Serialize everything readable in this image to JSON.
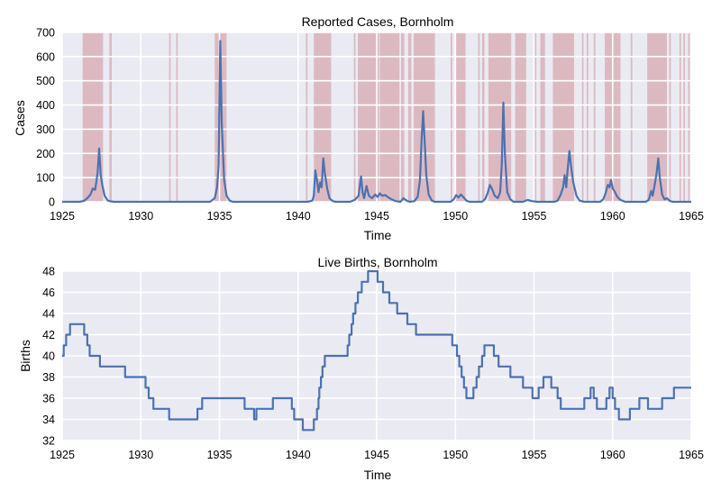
{
  "chart_data": [
    {
      "type": "line",
      "title": "Reported Cases, Bornholm",
      "xlabel": "Time",
      "ylabel": "Cases",
      "xlim": [
        1925,
        1965
      ],
      "ylim": [
        0,
        700
      ],
      "xticks": [
        1925,
        1930,
        1935,
        1940,
        1945,
        1950,
        1955,
        1960,
        1965
      ],
      "yticks": [
        0,
        100,
        200,
        300,
        400,
        500,
        600,
        700
      ],
      "grid": true,
      "series": [
        {
          "color": "#4c72b0",
          "points": [
            [
              1925,
              0
            ],
            [
              1926.1,
              0
            ],
            [
              1926.4,
              4
            ],
            [
              1926.6,
              15
            ],
            [
              1926.8,
              30
            ],
            [
              1926.95,
              55
            ],
            [
              1927.1,
              50
            ],
            [
              1927.25,
              120
            ],
            [
              1927.35,
              220
            ],
            [
              1927.45,
              110
            ],
            [
              1927.55,
              70
            ],
            [
              1927.7,
              25
            ],
            [
              1927.9,
              5
            ],
            [
              1928.1,
              2
            ],
            [
              1928.3,
              0
            ],
            [
              1934.4,
              0
            ],
            [
              1934.7,
              15
            ],
            [
              1934.85,
              60
            ],
            [
              1934.95,
              150
            ],
            [
              1935.05,
              665
            ],
            [
              1935.15,
              320
            ],
            [
              1935.3,
              90
            ],
            [
              1935.45,
              25
            ],
            [
              1935.65,
              5
            ],
            [
              1935.85,
              0
            ],
            [
              1940.6,
              0
            ],
            [
              1940.9,
              5
            ],
            [
              1941.0,
              25
            ],
            [
              1941.1,
              130
            ],
            [
              1941.2,
              90
            ],
            [
              1941.3,
              40
            ],
            [
              1941.4,
              80
            ],
            [
              1941.5,
              60
            ],
            [
              1941.6,
              180
            ],
            [
              1941.7,
              120
            ],
            [
              1941.85,
              55
            ],
            [
              1942.0,
              15
            ],
            [
              1942.2,
              3
            ],
            [
              1942.4,
              0
            ],
            [
              1943.3,
              0
            ],
            [
              1943.6,
              8
            ],
            [
              1943.85,
              25
            ],
            [
              1944.0,
              105
            ],
            [
              1944.1,
              40
            ],
            [
              1944.2,
              15
            ],
            [
              1944.35,
              65
            ],
            [
              1944.5,
              25
            ],
            [
              1944.7,
              15
            ],
            [
              1944.9,
              30
            ],
            [
              1945.05,
              20
            ],
            [
              1945.2,
              35
            ],
            [
              1945.35,
              25
            ],
            [
              1945.55,
              28
            ],
            [
              1945.75,
              18
            ],
            [
              1945.95,
              10
            ],
            [
              1946.2,
              3
            ],
            [
              1946.5,
              0
            ],
            [
              1946.7,
              15
            ],
            [
              1946.9,
              5
            ],
            [
              1947.1,
              0
            ],
            [
              1947.4,
              3
            ],
            [
              1947.6,
              20
            ],
            [
              1947.75,
              90
            ],
            [
              1947.85,
              250
            ],
            [
              1947.95,
              375
            ],
            [
              1948.05,
              250
            ],
            [
              1948.15,
              110
            ],
            [
              1948.3,
              30
            ],
            [
              1948.5,
              5
            ],
            [
              1948.7,
              0
            ],
            [
              1949.7,
              0
            ],
            [
              1949.9,
              10
            ],
            [
              1950.05,
              28
            ],
            [
              1950.2,
              18
            ],
            [
              1950.35,
              30
            ],
            [
              1950.5,
              20
            ],
            [
              1950.7,
              5
            ],
            [
              1950.9,
              0
            ],
            [
              1951.7,
              0
            ],
            [
              1951.9,
              12
            ],
            [
              1952.05,
              35
            ],
            [
              1952.2,
              70
            ],
            [
              1952.35,
              50
            ],
            [
              1952.5,
              25
            ],
            [
              1952.7,
              15
            ],
            [
              1952.85,
              40
            ],
            [
              1952.95,
              150
            ],
            [
              1953.05,
              410
            ],
            [
              1953.15,
              200
            ],
            [
              1953.3,
              40
            ],
            [
              1953.5,
              10
            ],
            [
              1953.7,
              0
            ],
            [
              1954.3,
              0
            ],
            [
              1954.6,
              8
            ],
            [
              1954.85,
              3
            ],
            [
              1955.2,
              0
            ],
            [
              1956.3,
              0
            ],
            [
              1956.5,
              5
            ],
            [
              1956.7,
              30
            ],
            [
              1956.85,
              60
            ],
            [
              1956.95,
              110
            ],
            [
              1957.05,
              60
            ],
            [
              1957.15,
              140
            ],
            [
              1957.25,
              210
            ],
            [
              1957.35,
              150
            ],
            [
              1957.5,
              80
            ],
            [
              1957.7,
              25
            ],
            [
              1957.9,
              5
            ],
            [
              1958.2,
              0
            ],
            [
              1959.2,
              0
            ],
            [
              1959.4,
              10
            ],
            [
              1959.55,
              35
            ],
            [
              1959.7,
              70
            ],
            [
              1959.8,
              60
            ],
            [
              1959.9,
              90
            ],
            [
              1960.0,
              55
            ],
            [
              1960.15,
              40
            ],
            [
              1960.3,
              20
            ],
            [
              1960.5,
              8
            ],
            [
              1960.8,
              0
            ],
            [
              1962.1,
              0
            ],
            [
              1962.3,
              8
            ],
            [
              1962.45,
              45
            ],
            [
              1962.55,
              25
            ],
            [
              1962.7,
              80
            ],
            [
              1962.8,
              120
            ],
            [
              1962.9,
              180
            ],
            [
              1963.0,
              100
            ],
            [
              1963.15,
              30
            ],
            [
              1963.3,
              10
            ],
            [
              1963.45,
              15
            ],
            [
              1963.6,
              5
            ],
            [
              1963.8,
              0
            ],
            [
              1965,
              0
            ]
          ]
        }
      ],
      "shaded_intervals": {
        "color": "#d9b0b8",
        "ranges": [
          [
            1926.3,
            1927.6
          ],
          [
            1928.0,
            1928.15
          ],
          [
            1931.8,
            1931.9
          ],
          [
            1932.25,
            1932.35
          ],
          [
            1934.7,
            1935.45
          ],
          [
            1940.5,
            1940.6
          ],
          [
            1941.0,
            1942.1
          ],
          [
            1943.55,
            1943.65
          ],
          [
            1943.8,
            1945.15
          ],
          [
            1945.2,
            1946.45
          ],
          [
            1946.55,
            1946.75
          ],
          [
            1947.0,
            1947.2
          ],
          [
            1947.35,
            1948.7
          ],
          [
            1949.7,
            1949.8
          ],
          [
            1950.05,
            1950.65
          ],
          [
            1951.45,
            1951.55
          ],
          [
            1951.7,
            1951.85
          ],
          [
            1952.1,
            1953.55
          ],
          [
            1953.8,
            1954.5
          ],
          [
            1955.05,
            1955.15
          ],
          [
            1955.4,
            1955.7
          ],
          [
            1956.2,
            1957.55
          ],
          [
            1958.05,
            1958.15
          ],
          [
            1958.35,
            1958.45
          ],
          [
            1958.8,
            1958.9
          ],
          [
            1959.5,
            1960.5
          ],
          [
            1961.15,
            1961.25
          ],
          [
            1962.2,
            1963.45
          ],
          [
            1963.6,
            1963.7
          ],
          [
            1964.25,
            1964.35
          ],
          [
            1964.5,
            1964.6
          ],
          [
            1964.8,
            1964.9
          ]
        ]
      }
    },
    {
      "type": "line",
      "title": "Live Births, Bornholm",
      "xlabel": "Time",
      "ylabel": "Births",
      "xlim": [
        1925,
        1965
      ],
      "ylim": [
        32,
        48
      ],
      "xticks": [
        1925,
        1930,
        1935,
        1940,
        1945,
        1950,
        1955,
        1960,
        1965
      ],
      "yticks": [
        32,
        34,
        36,
        38,
        40,
        42,
        44,
        46,
        48
      ],
      "grid": true,
      "step": true,
      "series": [
        {
          "color": "#4c72b0",
          "points": [
            [
              1925,
              40
            ],
            [
              1925.1,
              41
            ],
            [
              1925.25,
              42
            ],
            [
              1925.5,
              43
            ],
            [
              1926.4,
              42
            ],
            [
              1926.6,
              41
            ],
            [
              1926.75,
              40
            ],
            [
              1927.4,
              39
            ],
            [
              1929.0,
              38
            ],
            [
              1930.3,
              37
            ],
            [
              1930.5,
              36
            ],
            [
              1930.8,
              35
            ],
            [
              1931.8,
              34
            ],
            [
              1933.6,
              35
            ],
            [
              1933.9,
              36
            ],
            [
              1936.6,
              35
            ],
            [
              1937.2,
              34
            ],
            [
              1937.35,
              35
            ],
            [
              1938.1,
              35
            ],
            [
              1938.4,
              36
            ],
            [
              1939.6,
              35
            ],
            [
              1939.75,
              34
            ],
            [
              1940.3,
              33
            ],
            [
              1941.0,
              34
            ],
            [
              1941.2,
              35
            ],
            [
              1941.3,
              36
            ],
            [
              1941.35,
              37
            ],
            [
              1941.45,
              38
            ],
            [
              1941.55,
              39
            ],
            [
              1941.7,
              40
            ],
            [
              1943.0,
              40
            ],
            [
              1943.15,
              41
            ],
            [
              1943.25,
              42
            ],
            [
              1943.4,
              43
            ],
            [
              1943.5,
              44
            ],
            [
              1943.65,
              45
            ],
            [
              1943.8,
              46
            ],
            [
              1944.05,
              47
            ],
            [
              1944.45,
              48
            ],
            [
              1945.05,
              47
            ],
            [
              1945.4,
              46
            ],
            [
              1945.8,
              45
            ],
            [
              1946.3,
              44
            ],
            [
              1946.95,
              43
            ],
            [
              1947.5,
              42
            ],
            [
              1949.8,
              41
            ],
            [
              1950.1,
              40
            ],
            [
              1950.25,
              39
            ],
            [
              1950.4,
              38
            ],
            [
              1950.55,
              37
            ],
            [
              1950.7,
              36
            ],
            [
              1951.15,
              37
            ],
            [
              1951.35,
              38
            ],
            [
              1951.5,
              39
            ],
            [
              1951.7,
              40
            ],
            [
              1951.85,
              41
            ],
            [
              1952.45,
              40
            ],
            [
              1952.75,
              39
            ],
            [
              1953.5,
              38
            ],
            [
              1954.3,
              37
            ],
            [
              1954.9,
              36
            ],
            [
              1955.3,
              37
            ],
            [
              1955.6,
              38
            ],
            [
              1956.1,
              37
            ],
            [
              1956.5,
              36
            ],
            [
              1956.7,
              35
            ],
            [
              1958.2,
              36
            ],
            [
              1958.6,
              37
            ],
            [
              1958.8,
              36
            ],
            [
              1959.0,
              35
            ],
            [
              1959.6,
              36
            ],
            [
              1959.8,
              37
            ],
            [
              1960.0,
              36
            ],
            [
              1960.15,
              35
            ],
            [
              1960.4,
              34
            ],
            [
              1961.1,
              35
            ],
            [
              1961.7,
              36
            ],
            [
              1962.25,
              35
            ],
            [
              1963.15,
              36
            ],
            [
              1963.9,
              37
            ],
            [
              1965,
              37
            ]
          ]
        }
      ]
    }
  ]
}
